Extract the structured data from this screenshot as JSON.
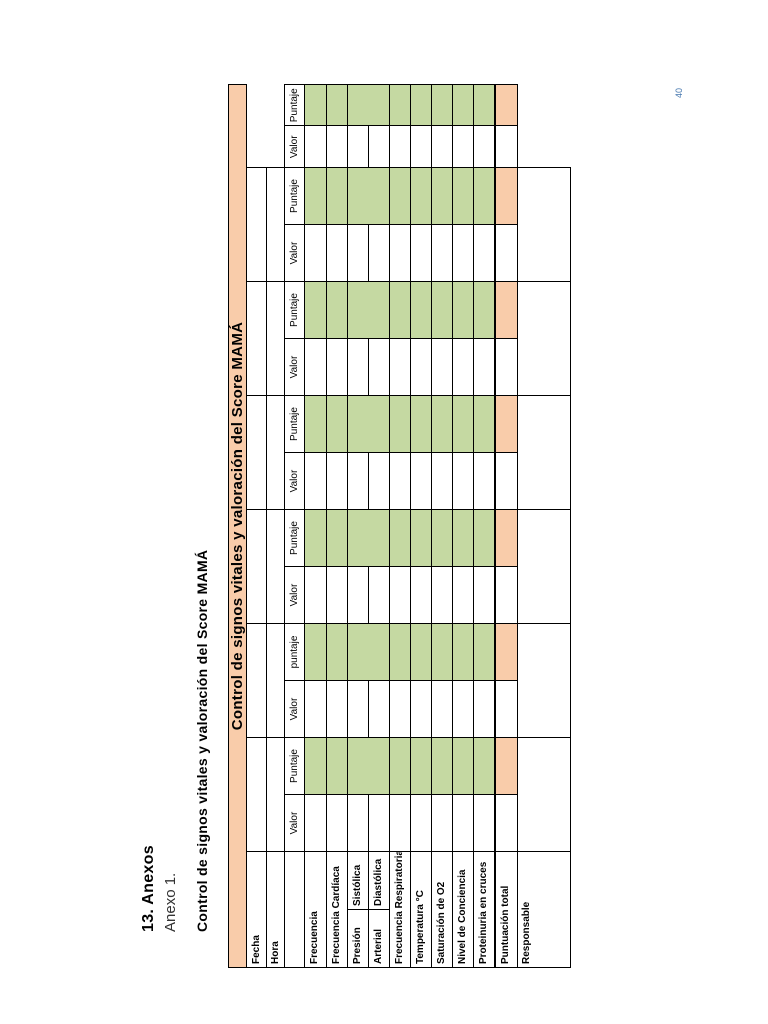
{
  "page_number": "40",
  "heading": "13. Anexos",
  "annex": "Anexo 1.",
  "subtitle": "Control de signos vitales y valoración del Score MAMÁ",
  "table": {
    "title": "Control de signos vitales y valoración del Score MAMÁ",
    "row_labels": {
      "fecha": "Fecha",
      "hora": "Hora",
      "frecuencia": "Frecuencia",
      "frecuencia_cardiaca": "Frecuencia Cardíaca",
      "presion": "Presión",
      "arterial": "Arterial",
      "sistolica": "Sistólica",
      "diastolica": "Diastólica",
      "frecuencia_respiratoria": "Frecuencia Respiratoria",
      "temperatura": "Temperatura °C",
      "saturacion": "Saturación de O2",
      "nivel_conciencia": "Nivel de Conciencia",
      "proteinuria": "Proteinuria en cruces",
      "puntuacion_total": "Puntuación total",
      "responsable": "Responsable"
    },
    "columns": [
      {
        "valor": "Valor",
        "puntaje": "Puntaje"
      },
      {
        "valor": "Valor",
        "puntaje": "puntaje"
      },
      {
        "valor": "Valor",
        "puntaje": "Puntaje"
      },
      {
        "valor": "Valor",
        "puntaje": "Puntaje"
      },
      {
        "valor": "Valor",
        "puntaje": "Puntaje"
      },
      {
        "valor": "Valor",
        "puntaje": "Puntaje"
      },
      {
        "valor": "Valor",
        "puntaje": "Puntaje"
      }
    ]
  },
  "colors": {
    "peach": "#f9ccaa",
    "green": "#c5d9a2"
  }
}
